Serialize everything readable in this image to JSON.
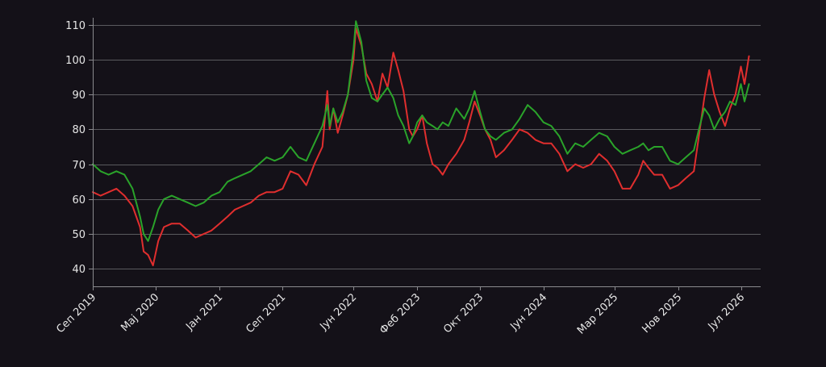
{
  "chart_data": {
    "type": "line",
    "title": "",
    "xlabel": "",
    "ylabel": "",
    "ylim": [
      35,
      112
    ],
    "xlim": [
      "2019-09-01",
      "2026-09-15"
    ],
    "grid": {
      "y": true,
      "x": false
    },
    "y_ticks": [
      40,
      50,
      60,
      70,
      80,
      90,
      100,
      110
    ],
    "x_ticks": [
      {
        "date": "2019-09-01",
        "label": "Сеп 2019"
      },
      {
        "date": "2020-05-01",
        "label": "Мај 2020"
      },
      {
        "date": "2021-01-01",
        "label": "Јан 2021"
      },
      {
        "date": "2021-09-01",
        "label": "Сеп 2021"
      },
      {
        "date": "2022-06-01",
        "label": "Јун 2022"
      },
      {
        "date": "2023-02-01",
        "label": "Феб 2023"
      },
      {
        "date": "2023-10-01",
        "label": "Окт 2023"
      },
      {
        "date": "2024-06-01",
        "label": "Јун 2024"
      },
      {
        "date": "2025-03-01",
        "label": "Мар 2025"
      },
      {
        "date": "2025-11-01",
        "label": "Нов 2025"
      },
      {
        "date": "2026-07-01",
        "label": "Јул 2026"
      }
    ],
    "colors": {
      "background": "#141118",
      "grid": "#5a5a5e",
      "text": "#e6e6e6"
    },
    "series": [
      {
        "color": "#e02e2e",
        "points": [
          [
            "2019-09-01",
            62
          ],
          [
            "2019-10-01",
            61
          ],
          [
            "2019-11-01",
            62
          ],
          [
            "2019-12-01",
            63
          ],
          [
            "2020-01-01",
            61
          ],
          [
            "2020-02-01",
            58
          ],
          [
            "2020-03-01",
            52
          ],
          [
            "2020-03-15",
            45
          ],
          [
            "2020-04-01",
            44
          ],
          [
            "2020-04-20",
            41
          ],
          [
            "2020-05-10",
            48
          ],
          [
            "2020-06-01",
            52
          ],
          [
            "2020-07-01",
            53
          ],
          [
            "2020-08-01",
            53
          ],
          [
            "2020-09-01",
            51
          ],
          [
            "2020-10-01",
            49
          ],
          [
            "2020-11-01",
            50
          ],
          [
            "2020-12-01",
            51
          ],
          [
            "2021-01-01",
            53
          ],
          [
            "2021-02-01",
            55
          ],
          [
            "2021-03-01",
            57
          ],
          [
            "2021-04-01",
            58
          ],
          [
            "2021-05-01",
            59
          ],
          [
            "2021-06-01",
            61
          ],
          [
            "2021-07-01",
            62
          ],
          [
            "2021-08-01",
            62
          ],
          [
            "2021-09-01",
            63
          ],
          [
            "2021-10-01",
            68
          ],
          [
            "2021-11-01",
            67
          ],
          [
            "2021-12-01",
            64
          ],
          [
            "2022-01-01",
            70
          ],
          [
            "2022-02-01",
            75
          ],
          [
            "2022-02-20",
            91
          ],
          [
            "2022-03-01",
            80
          ],
          [
            "2022-03-15",
            86
          ],
          [
            "2022-04-01",
            79
          ],
          [
            "2022-04-20",
            84
          ],
          [
            "2022-05-10",
            90
          ],
          [
            "2022-06-01",
            100
          ],
          [
            "2022-06-10",
            109
          ],
          [
            "2022-07-01",
            104
          ],
          [
            "2022-07-20",
            96
          ],
          [
            "2022-08-10",
            93
          ],
          [
            "2022-09-01",
            88
          ],
          [
            "2022-09-20",
            96
          ],
          [
            "2022-10-10",
            92
          ],
          [
            "2022-11-01",
            102
          ],
          [
            "2022-11-20",
            97
          ],
          [
            "2022-12-10",
            91
          ],
          [
            "2023-01-01",
            80
          ],
          [
            "2023-01-15",
            78
          ],
          [
            "2023-02-01",
            80
          ],
          [
            "2023-02-20",
            84
          ],
          [
            "2023-03-10",
            76
          ],
          [
            "2023-04-01",
            70
          ],
          [
            "2023-04-20",
            69
          ],
          [
            "2023-05-10",
            67
          ],
          [
            "2023-06-01",
            70
          ],
          [
            "2023-07-01",
            73
          ],
          [
            "2023-08-01",
            77
          ],
          [
            "2023-08-20",
            82
          ],
          [
            "2023-09-10",
            88
          ],
          [
            "2023-10-01",
            84
          ],
          [
            "2023-10-20",
            80
          ],
          [
            "2023-11-10",
            77
          ],
          [
            "2023-12-01",
            72
          ],
          [
            "2024-01-01",
            74
          ],
          [
            "2024-02-01",
            77
          ],
          [
            "2024-03-01",
            80
          ],
          [
            "2024-04-01",
            79
          ],
          [
            "2024-05-01",
            77
          ],
          [
            "2024-06-01",
            76
          ],
          [
            "2024-07-01",
            76
          ],
          [
            "2024-08-01",
            73
          ],
          [
            "2024-09-01",
            68
          ],
          [
            "2024-10-01",
            70
          ],
          [
            "2024-11-01",
            69
          ],
          [
            "2024-12-01",
            70
          ],
          [
            "2025-01-01",
            73
          ],
          [
            "2025-02-01",
            71
          ],
          [
            "2025-03-01",
            68
          ],
          [
            "2025-04-01",
            63
          ],
          [
            "2025-05-01",
            63
          ],
          [
            "2025-06-01",
            67
          ],
          [
            "2025-06-20",
            71
          ],
          [
            "2025-07-10",
            69
          ],
          [
            "2025-08-01",
            67
          ],
          [
            "2025-09-01",
            67
          ],
          [
            "2025-10-01",
            63
          ],
          [
            "2025-11-01",
            64
          ],
          [
            "2025-12-01",
            66
          ],
          [
            "2026-01-01",
            68
          ],
          [
            "2026-01-20",
            78
          ],
          [
            "2026-02-10",
            89
          ],
          [
            "2026-03-01",
            97
          ],
          [
            "2026-03-20",
            90
          ],
          [
            "2026-04-10",
            85
          ],
          [
            "2026-05-01",
            81
          ],
          [
            "2026-05-20",
            86
          ],
          [
            "2026-06-10",
            90
          ],
          [
            "2026-07-01",
            98
          ],
          [
            "2026-07-15",
            93
          ],
          [
            "2026-08-01",
            101
          ]
        ]
      },
      {
        "color": "#2aa32a",
        "points": [
          [
            "2019-09-01",
            70
          ],
          [
            "2019-10-01",
            68
          ],
          [
            "2019-11-01",
            67
          ],
          [
            "2019-12-01",
            68
          ],
          [
            "2020-01-01",
            67
          ],
          [
            "2020-02-01",
            63
          ],
          [
            "2020-03-01",
            55
          ],
          [
            "2020-03-15",
            50
          ],
          [
            "2020-04-01",
            48
          ],
          [
            "2020-04-20",
            52
          ],
          [
            "2020-05-10",
            57
          ],
          [
            "2020-06-01",
            60
          ],
          [
            "2020-07-01",
            61
          ],
          [
            "2020-08-01",
            60
          ],
          [
            "2020-09-01",
            59
          ],
          [
            "2020-10-01",
            58
          ],
          [
            "2020-11-01",
            59
          ],
          [
            "2020-12-01",
            61
          ],
          [
            "2021-01-01",
            62
          ],
          [
            "2021-02-01",
            65
          ],
          [
            "2021-03-01",
            66
          ],
          [
            "2021-04-01",
            67
          ],
          [
            "2021-05-01",
            68
          ],
          [
            "2021-06-01",
            70
          ],
          [
            "2021-07-01",
            72
          ],
          [
            "2021-08-01",
            71
          ],
          [
            "2021-09-01",
            72
          ],
          [
            "2021-10-01",
            75
          ],
          [
            "2021-11-01",
            72
          ],
          [
            "2021-12-01",
            71
          ],
          [
            "2022-01-01",
            76
          ],
          [
            "2022-02-01",
            81
          ],
          [
            "2022-02-20",
            87
          ],
          [
            "2022-03-01",
            81
          ],
          [
            "2022-03-15",
            86
          ],
          [
            "2022-04-01",
            82
          ],
          [
            "2022-04-20",
            85
          ],
          [
            "2022-05-10",
            90
          ],
          [
            "2022-06-01",
            103
          ],
          [
            "2022-06-10",
            111
          ],
          [
            "2022-07-01",
            105
          ],
          [
            "2022-07-20",
            94
          ],
          [
            "2022-08-10",
            89
          ],
          [
            "2022-09-01",
            88
          ],
          [
            "2022-09-20",
            90
          ],
          [
            "2022-10-10",
            92
          ],
          [
            "2022-11-01",
            89
          ],
          [
            "2022-11-20",
            84
          ],
          [
            "2022-12-10",
            81
          ],
          [
            "2023-01-01",
            76
          ],
          [
            "2023-01-15",
            78
          ],
          [
            "2023-02-01",
            82
          ],
          [
            "2023-02-20",
            84
          ],
          [
            "2023-03-10",
            82
          ],
          [
            "2023-04-01",
            81
          ],
          [
            "2023-04-20",
            80
          ],
          [
            "2023-05-10",
            82
          ],
          [
            "2023-06-01",
            81
          ],
          [
            "2023-07-01",
            86
          ],
          [
            "2023-08-01",
            83
          ],
          [
            "2023-08-20",
            86
          ],
          [
            "2023-09-10",
            91
          ],
          [
            "2023-10-01",
            85
          ],
          [
            "2023-10-20",
            80
          ],
          [
            "2023-11-10",
            78
          ],
          [
            "2023-12-01",
            77
          ],
          [
            "2024-01-01",
            79
          ],
          [
            "2024-02-01",
            80
          ],
          [
            "2024-03-01",
            83
          ],
          [
            "2024-04-01",
            87
          ],
          [
            "2024-05-01",
            85
          ],
          [
            "2024-06-01",
            82
          ],
          [
            "2024-07-01",
            81
          ],
          [
            "2024-08-01",
            78
          ],
          [
            "2024-09-01",
            73
          ],
          [
            "2024-10-01",
            76
          ],
          [
            "2024-11-01",
            75
          ],
          [
            "2024-12-01",
            77
          ],
          [
            "2025-01-01",
            79
          ],
          [
            "2025-02-01",
            78
          ],
          [
            "2025-03-01",
            75
          ],
          [
            "2025-04-01",
            73
          ],
          [
            "2025-05-01",
            74
          ],
          [
            "2025-06-01",
            75
          ],
          [
            "2025-06-20",
            76
          ],
          [
            "2025-07-10",
            74
          ],
          [
            "2025-08-01",
            75
          ],
          [
            "2025-09-01",
            75
          ],
          [
            "2025-10-01",
            71
          ],
          [
            "2025-11-01",
            70
          ],
          [
            "2025-12-01",
            72
          ],
          [
            "2026-01-01",
            74
          ],
          [
            "2026-01-20",
            80
          ],
          [
            "2026-02-10",
            86
          ],
          [
            "2026-03-01",
            84
          ],
          [
            "2026-03-20",
            80
          ],
          [
            "2026-04-10",
            83
          ],
          [
            "2026-05-01",
            85
          ],
          [
            "2026-05-20",
            88
          ],
          [
            "2026-06-10",
            87
          ],
          [
            "2026-07-01",
            93
          ],
          [
            "2026-07-15",
            88
          ],
          [
            "2026-08-01",
            93
          ]
        ]
      }
    ]
  }
}
